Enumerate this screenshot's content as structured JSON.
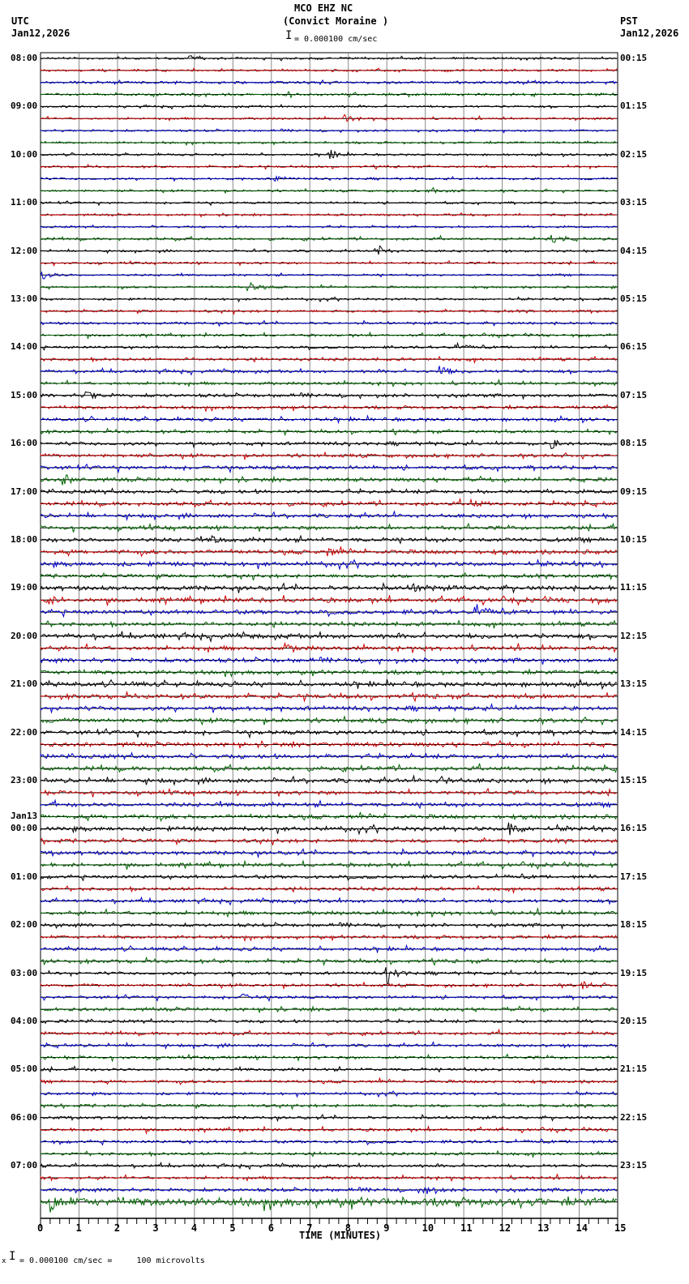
{
  "header": {
    "station": "MCO EHZ NC",
    "location": "(Convict Moraine )",
    "left_tz": "UTC",
    "left_date": "Jan12,2026",
    "right_tz": "PST",
    "right_date": "Jan12,2026",
    "scale_text": "= 0.000100 cm/sec"
  },
  "footer": {
    "scale_text": "= 0.000100 cm/sec =     100 microvolts",
    "prefix": "x"
  },
  "colors": [
    "#000000",
    "#cc0000",
    "#0000cc",
    "#006600"
  ],
  "chart_data": {
    "type": "line",
    "title": "MCO EHZ NC (Convict Moraine ) helicorder",
    "xlabel": "TIME (MINUTES)",
    "ylabel": "",
    "x_ticks": [
      "0",
      "1",
      "2",
      "3",
      "4",
      "5",
      "6",
      "7",
      "8",
      "9",
      "10",
      "11",
      "12",
      "13",
      "14",
      "15"
    ],
    "xlim": [
      0,
      15
    ],
    "traces_per_hour": 4,
    "minutes_per_trace": 15,
    "trace_colors_cycle": [
      "black",
      "red",
      "blue",
      "green"
    ],
    "left_labels": [
      "08:00",
      "09:00",
      "10:00",
      "11:00",
      "12:00",
      "13:00",
      "14:00",
      "15:00",
      "16:00",
      "17:00",
      "18:00",
      "19:00",
      "20:00",
      "21:00",
      "22:00",
      "23:00",
      "00:00",
      "01:00",
      "02:00",
      "03:00",
      "04:00",
      "05:00",
      "06:00",
      "07:00"
    ],
    "left_date_change": {
      "label": "Jan13",
      "at_hour_index": 16
    },
    "right_labels": [
      "00:15",
      "01:15",
      "02:15",
      "03:15",
      "04:15",
      "05:15",
      "06:15",
      "07:15",
      "08:15",
      "09:15",
      "10:15",
      "11:15",
      "12:15",
      "13:15",
      "14:15",
      "15:15",
      "16:15",
      "17:15",
      "18:15",
      "19:15",
      "20:15",
      "21:15",
      "22:15",
      "23:15"
    ],
    "scale": "0.000100 cm/sec = 100 microvolts",
    "noise_amplitude": [
      1,
      1,
      1.2,
      1.2,
      1,
      1,
      1,
      1,
      1,
      1,
      1,
      1,
      1,
      1,
      1,
      1.2,
      1,
      1,
      1,
      1,
      1,
      1.2,
      1.2,
      1.2,
      1.2,
      1.4,
      1.4,
      1.4,
      1.6,
      1.6,
      1.6,
      1.4,
      1.6,
      1.6,
      1.8,
      1.8,
      1.8,
      1.8,
      1.8,
      1.8,
      2,
      2,
      2,
      1.8,
      2.2,
      2.2,
      2,
      1.8,
      2.2,
      2,
      2,
      2,
      2.2,
      2,
      2,
      2,
      2,
      2,
      2,
      2,
      2,
      1.8,
      2,
      2,
      2,
      1.8,
      1.8,
      1.8,
      1.6,
      1.6,
      1.6,
      1.8,
      1.6,
      1.6,
      1.6,
      1.6,
      1.4,
      1.4,
      1.4,
      1.6,
      1.4,
      1.4,
      1.4,
      1.4,
      1.4,
      1.4,
      1.2,
      1.4,
      1.4,
      1.4,
      1.4,
      1.4,
      1.4,
      1.4,
      1.6,
      4
    ],
    "events": [
      {
        "trace": 0,
        "minute": 3.9,
        "amp": 3
      },
      {
        "trace": 5,
        "minute": 7.9,
        "amp": 4
      },
      {
        "trace": 8,
        "minute": 7.5,
        "amp": 6
      },
      {
        "trace": 10,
        "minute": 6.1,
        "amp": 4
      },
      {
        "trace": 11,
        "minute": 10.2,
        "amp": 4
      },
      {
        "trace": 15,
        "minute": 13.3,
        "amp": 4
      },
      {
        "trace": 16,
        "minute": 8.8,
        "amp": 6
      },
      {
        "trace": 18,
        "minute": 0.05,
        "amp": 6
      },
      {
        "trace": 19,
        "minute": 5.4,
        "amp": 6
      },
      {
        "trace": 24,
        "minute": 10.8,
        "amp": 4
      },
      {
        "trace": 26,
        "minute": 10.4,
        "amp": 6
      },
      {
        "trace": 28,
        "minute": 1.2,
        "amp": 6
      },
      {
        "trace": 32,
        "minute": 13.3,
        "amp": 5
      },
      {
        "trace": 35,
        "minute": 0.6,
        "amp": 6
      },
      {
        "trace": 37,
        "minute": 11.2,
        "amp": 5
      },
      {
        "trace": 40,
        "minute": 4.5,
        "amp": 4
      },
      {
        "trace": 41,
        "minute": 7.5,
        "amp": 4
      },
      {
        "trace": 44,
        "minute": 9.7,
        "amp": 5
      },
      {
        "trace": 45,
        "minute": 0.2,
        "amp": 5
      },
      {
        "trace": 46,
        "minute": 11.3,
        "amp": 9
      },
      {
        "trace": 49,
        "minute": 6.4,
        "amp": 5
      },
      {
        "trace": 60,
        "minute": 10.4,
        "amp": 5
      },
      {
        "trace": 64,
        "minute": 12.2,
        "amp": 8
      },
      {
        "trace": 76,
        "minute": 9.0,
        "amp": 14
      },
      {
        "trace": 77,
        "minute": 14.1,
        "amp": 5
      },
      {
        "trace": 78,
        "minute": 5.2,
        "amp": 4
      },
      {
        "trace": 94,
        "minute": 10.0,
        "amp": 6
      },
      {
        "trace": 95,
        "minute": 0.3,
        "amp": 9
      }
    ]
  }
}
